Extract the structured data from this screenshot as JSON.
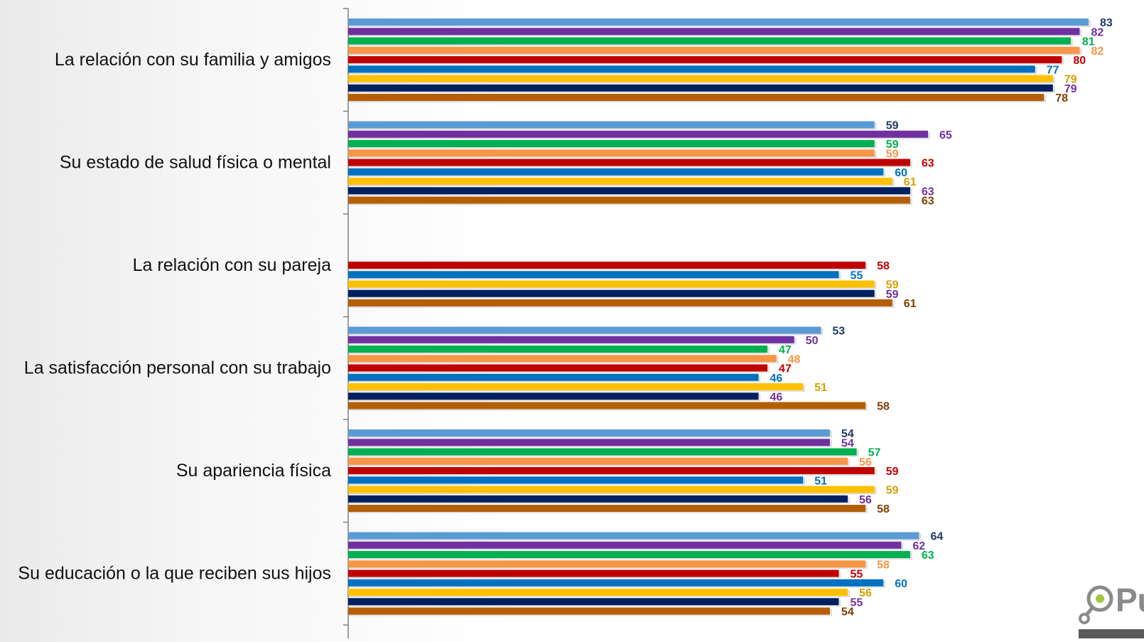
{
  "chart_data": {
    "type": "bar",
    "orientation": "horizontal",
    "xlim": [
      0,
      83
    ],
    "categories": [
      "La relación con su familia y amigos",
      "Su estado de salud física o mental",
      "La relación con su pareja",
      "La satisfacción personal con su trabajo",
      "Su apariencia física",
      "Su educación o la que reciben sus hijos"
    ],
    "series": [
      {
        "color": "#5b9bd5",
        "label_color": "#1f3864",
        "values": [
          83,
          59,
          null,
          53,
          54,
          64
        ]
      },
      {
        "color": "#7030a0",
        "label_color": "#7030a0",
        "values": [
          82,
          65,
          null,
          50,
          54,
          62
        ]
      },
      {
        "color": "#00b050",
        "label_color": "#00b050",
        "values": [
          81,
          59,
          null,
          47,
          57,
          63
        ]
      },
      {
        "color": "#f79646",
        "label_color": "#f79646",
        "values": [
          82,
          59,
          null,
          48,
          56,
          58
        ]
      },
      {
        "color": "#c00000",
        "label_color": "#c00000",
        "values": [
          80,
          63,
          58,
          47,
          59,
          55
        ]
      },
      {
        "color": "#0070c0",
        "label_color": "#0070c0",
        "values": [
          77,
          60,
          55,
          46,
          51,
          60
        ]
      },
      {
        "color": "#ffc000",
        "label_color": "#d4a000",
        "values": [
          79,
          61,
          59,
          51,
          59,
          56
        ]
      },
      {
        "color": "#002060",
        "label_color": "#7030a0",
        "values": [
          79,
          63,
          59,
          46,
          56,
          55
        ]
      },
      {
        "color": "#b45f06",
        "label_color": "#7f3f00",
        "values": [
          78,
          63,
          61,
          58,
          58,
          54
        ]
      }
    ],
    "grid": false,
    "legend": "none"
  },
  "logo": {
    "icon": "logo-icon",
    "text": "Pú",
    "colors": {
      "ring": "#8a8a8a",
      "dot": "#a3c73c",
      "text": "#8a8a8a"
    }
  }
}
